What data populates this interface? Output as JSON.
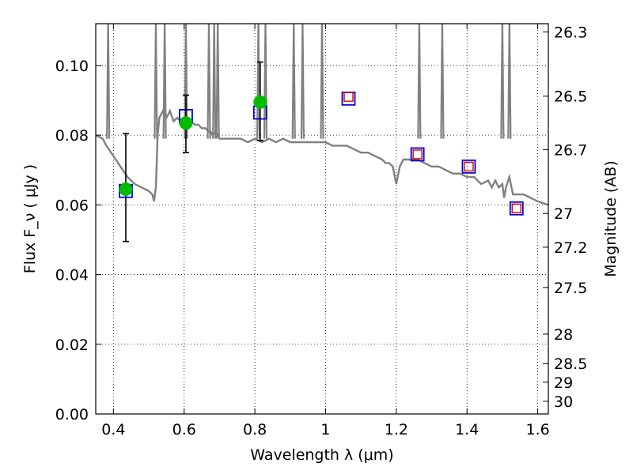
{
  "chart_data": {
    "type": "scatter",
    "title": "",
    "xlabel": "Wavelength  λ (μm)",
    "ylabel": "Flux  F_ν  ( μJy )",
    "ylabel_right": "Magnitude (AB)",
    "xlim": [
      0.35,
      1.63
    ],
    "ylim": [
      0.0,
      0.112
    ],
    "grid": true,
    "x_ticks": [
      0.4,
      0.6,
      0.8,
      1.0,
      1.2,
      1.4,
      1.6
    ],
    "x_tick_labels": [
      "0.4",
      "0.6",
      "0.8",
      "1",
      "1.2",
      "1.4",
      "1.6"
    ],
    "y_ticks": [
      0.0,
      0.02,
      0.04,
      0.06,
      0.08,
      0.1
    ],
    "y_tick_labels": [
      "0.00",
      "0.02",
      "0.04",
      "0.06",
      "0.08",
      "0.10"
    ],
    "mag_ticks": [
      26.3,
      26.5,
      26.7,
      27,
      27.2,
      27.5,
      28,
      28.5,
      29,
      30
    ],
    "mag_tick_labels": [
      "26.3",
      "26.5",
      "26.7",
      "27",
      "27.2",
      "27.5",
      "28",
      "28.5",
      "29",
      "30"
    ],
    "series": [
      {
        "marker": "line",
        "color": "#808080",
        "x": [
          0.35,
          0.37,
          0.38,
          0.4,
          0.42,
          0.44,
          0.46,
          0.48,
          0.5,
          0.51,
          0.515,
          0.52,
          0.525,
          0.53,
          0.54,
          0.545,
          0.55,
          0.56,
          0.57,
          0.58,
          0.59,
          0.6,
          0.61,
          0.62,
          0.63,
          0.64,
          0.65,
          0.66,
          0.67,
          0.675,
          0.68,
          0.69,
          0.695,
          0.7,
          0.72,
          0.74,
          0.76,
          0.78,
          0.8,
          0.82,
          0.84,
          0.86,
          0.88,
          0.9,
          0.92,
          0.94,
          0.96,
          0.98,
          1.0,
          1.02,
          1.04,
          1.06,
          1.08,
          1.1,
          1.12,
          1.14,
          1.16,
          1.17,
          1.18,
          1.19,
          1.2,
          1.21,
          1.22,
          1.24,
          1.26,
          1.28,
          1.3,
          1.32,
          1.34,
          1.36,
          1.38,
          1.4,
          1.42,
          1.44,
          1.46,
          1.47,
          1.48,
          1.49,
          1.5,
          1.505,
          1.51,
          1.52,
          1.53,
          1.54,
          1.56,
          1.58,
          1.6,
          1.63
        ],
        "y": [
          0.08,
          0.079,
          0.077,
          0.074,
          0.071,
          0.068,
          0.066,
          0.065,
          0.064,
          0.063,
          0.061,
          0.065,
          0.08,
          0.085,
          0.087,
          0.086,
          0.085,
          0.087,
          0.084,
          0.085,
          0.084,
          0.084,
          0.083,
          0.084,
          0.083,
          0.083,
          0.082,
          0.082,
          0.081,
          0.081,
          0.08,
          0.081,
          0.08,
          0.079,
          0.079,
          0.079,
          0.079,
          0.078,
          0.079,
          0.078,
          0.079,
          0.078,
          0.079,
          0.078,
          0.078,
          0.078,
          0.078,
          0.078,
          0.078,
          0.077,
          0.077,
          0.077,
          0.076,
          0.075,
          0.075,
          0.074,
          0.073,
          0.072,
          0.072,
          0.071,
          0.066,
          0.071,
          0.073,
          0.073,
          0.073,
          0.072,
          0.071,
          0.071,
          0.07,
          0.069,
          0.069,
          0.068,
          0.068,
          0.066,
          0.067,
          0.065,
          0.067,
          0.065,
          0.066,
          0.062,
          0.065,
          0.068,
          0.063,
          0.063,
          0.063,
          0.062,
          0.061,
          0.06
        ]
      },
      {
        "marker": "circle",
        "color": "#00bb00",
        "x": [
          0.435,
          0.605,
          0.815
        ],
        "y": [
          0.0645,
          0.0835,
          0.0895
        ],
        "yerr_low": [
          0.0495,
          0.075,
          0.0785
        ],
        "yerr_high": [
          0.0805,
          0.0915,
          0.101
        ]
      },
      {
        "marker": "square-open",
        "color": "#0000dd",
        "x": [
          0.435,
          0.605,
          0.815,
          1.065,
          1.26,
          1.405,
          1.54
        ],
        "y": [
          0.064,
          0.0855,
          0.0865,
          0.0905,
          0.0745,
          0.071,
          0.059
        ]
      },
      {
        "marker": "square-small",
        "color": "#dd0000",
        "x": [
          1.065,
          1.26,
          1.405,
          1.54
        ],
        "y": [
          0.091,
          0.0745,
          0.071,
          0.059
        ]
      }
    ]
  }
}
